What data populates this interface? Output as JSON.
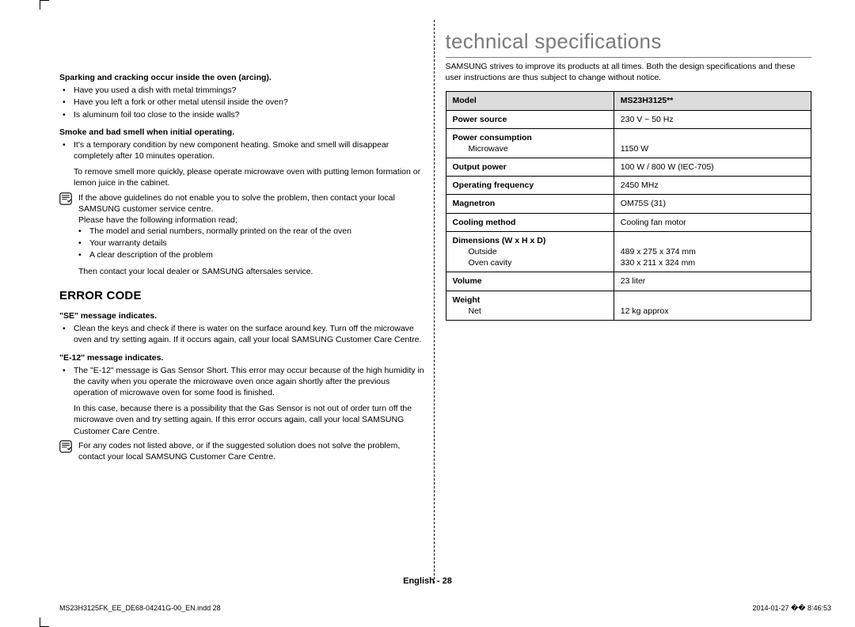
{
  "left": {
    "s1_head": "Sparking and cracking occur inside the oven (arcing).",
    "s1_items": [
      "Have you used a dish with metal trimmings?",
      "Have you left a fork or other metal utensil inside the oven?",
      "Is aluminum foil too close to the inside walls?"
    ],
    "s2_head": "Smoke and bad smell when initial operating.",
    "s2_item": "It's a temporary condition by new component heating. Smoke and smell will disappear completely after 10 minutes operation.",
    "s2_extra": "To remove smell more quickly, please operate microwave oven with putting lemon formation or lemon juice in the cabinet.",
    "note1_l1": "If the above guidelines do not enable you to solve the problem, then contact your local SAMSUNG customer service centre.",
    "note1_l2": "Please have the following information read;",
    "note1_items": [
      "The model and serial numbers, normally printed on the rear of the oven",
      "Your warranty details",
      "A clear description of the problem"
    ],
    "note1_l3": "Then contact your local dealer or SAMSUNG aftersales service.",
    "error_code_heading": "ERROR CODE",
    "se_head": "\"SE\" message indicates.",
    "se_item": "Clean the keys and check if there is water on the surface around key. Turn off the microwave oven and try setting again. If it occurs again, call your local SAMSUNG Customer Care Centre.",
    "e12_head": "\"E-12\" message indicates.",
    "e12_item": "The \"E-12\" message is Gas Sensor Short. This error may occur because of the high humidity in the cavity when you operate the microwave oven once again shortly after the previous operation of microwave oven for some food is finished.",
    "e12_extra": "In this case, because there is a possibility that the Gas Sensor is not out of order turn off the microwave oven and try setting again. If this error occurs again, call your local SAMSUNG Customer Care Centre.",
    "note2": "For any codes not listed above, or if the suggested solution does not solve the problem, contact your local SAMSUNG Customer Care Centre."
  },
  "right": {
    "title": "technical specifications",
    "intro": "SAMSUNG strives to improve its products at all times. Both the design specifications and these user instructions are thus subject to change without notice.",
    "table_header_left": "Model",
    "table_header_right": "MS23H3125**",
    "rows": [
      {
        "label": "Power source",
        "sub": "",
        "value": "230 V ~ 50 Hz"
      },
      {
        "label": "Power consumption",
        "sub": "Microwave",
        "value": "1150 W",
        "value_pad": true
      },
      {
        "label": "Output power",
        "sub": "",
        "value": "100 W / 800 W (IEC-705)"
      },
      {
        "label": "Operating frequency",
        "sub": "",
        "value": "2450 MHz"
      },
      {
        "label": "Magnetron",
        "sub": "",
        "value": "OM75S (31)"
      },
      {
        "label": "Cooling method",
        "sub": "",
        "value": "Cooling fan motor"
      },
      {
        "label": "Dimensions (W x H x D)",
        "sub": "Outside\nOven cavity",
        "value": "489 x 275 x 374 mm\n330 x 211 x 324 mm",
        "value_pad": true
      },
      {
        "label": "Volume",
        "sub": "",
        "value": "23 liter"
      },
      {
        "label": "Weight",
        "sub": "Net",
        "value": "12 kg approx",
        "value_pad": true
      }
    ]
  },
  "footer": "English - 28",
  "meta_left": "MS23H3125FK_EE_DE68-04241G-00_EN.indd   28",
  "meta_right": "2014-01-27   �� 8:46:53",
  "colors": {
    "heading_gray": "#7a7a7a",
    "table_header_bg": "#dcdcdc",
    "border": "#000000"
  }
}
